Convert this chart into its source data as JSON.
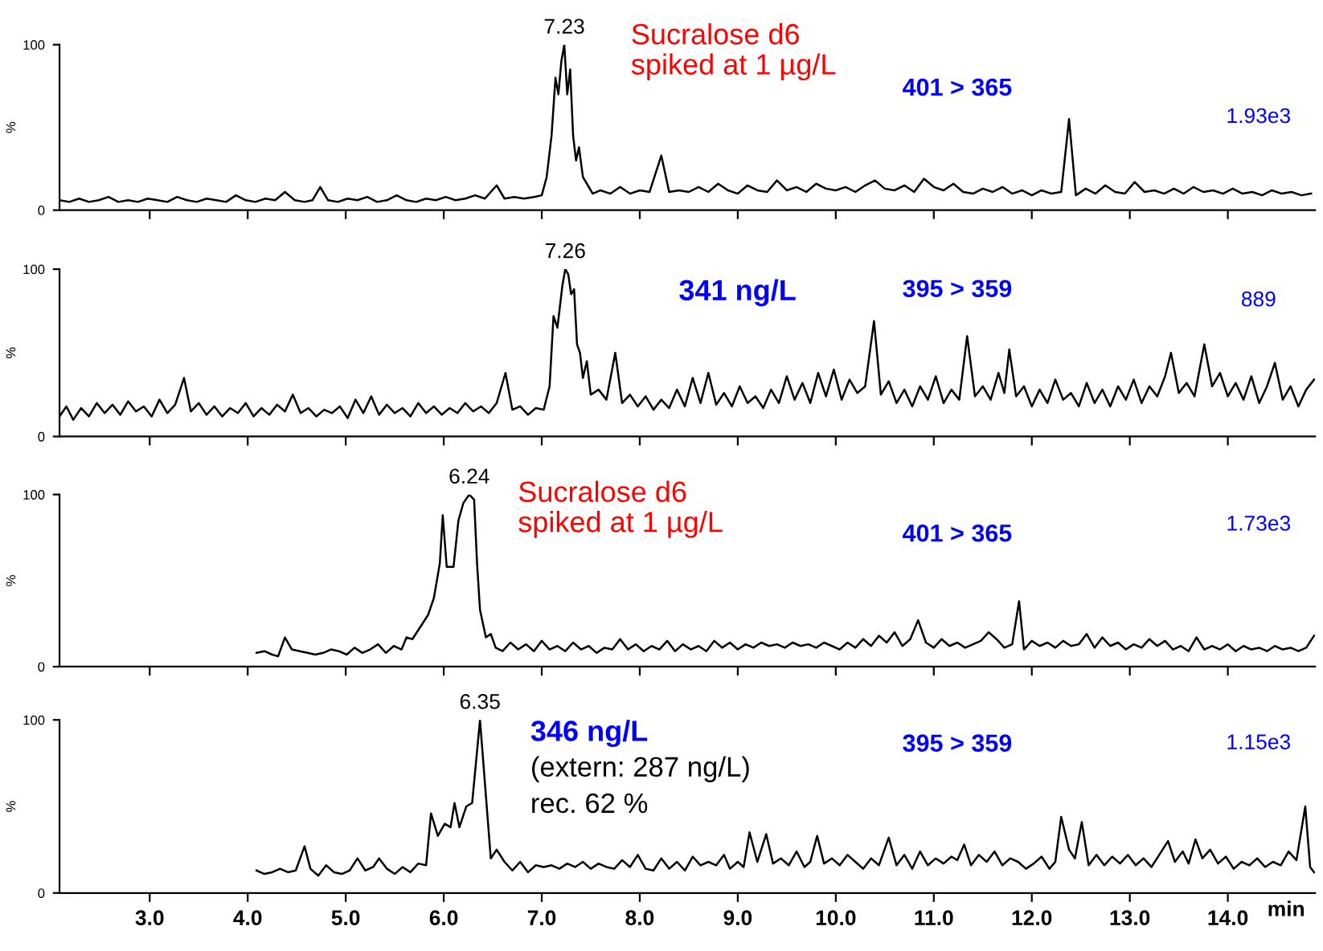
{
  "chart_data": [
    {
      "type": "line",
      "ylabel": "%",
      "xlim": [
        2.08,
        14.89
      ],
      "ylim": [
        0,
        100
      ],
      "yticks": [
        0,
        100
      ],
      "tick_labels": "y",
      "xticks": [
        3,
        4,
        5,
        6,
        7,
        8,
        9,
        10,
        11,
        12,
        13,
        14
      ],
      "annotations": [
        {
          "text": "7.23",
          "x": 7.23,
          "y": 100
        },
        "Sucralose d6\nspiked at 1 µg/L",
        "401 > 365",
        "1.93e3"
      ],
      "series": [
        {
          "color": "#000000",
          "x": [
            2.08,
            2.18,
            2.28,
            2.38,
            2.48,
            2.58,
            2.68,
            2.78,
            2.88,
            2.98,
            3.08,
            3.18,
            3.28,
            3.38,
            3.48,
            3.58,
            3.68,
            3.78,
            3.88,
            3.98,
            4.08,
            4.18,
            4.28,
            4.38,
            4.48,
            4.58,
            4.66,
            4.74,
            4.82,
            4.92,
            5.02,
            5.12,
            5.22,
            5.32,
            5.42,
            5.52,
            5.62,
            5.72,
            5.82,
            5.92,
            6.02,
            6.12,
            6.22,
            6.32,
            6.42,
            6.54,
            6.62,
            6.72,
            6.82,
            6.92,
            7.0,
            7.05,
            7.1,
            7.14,
            7.17,
            7.2,
            7.23,
            7.26,
            7.29,
            7.32,
            7.35,
            7.38,
            7.42,
            7.47,
            7.52,
            7.6,
            7.7,
            7.8,
            7.9,
            8.0,
            8.1,
            8.22,
            8.3,
            8.4,
            8.5,
            8.6,
            8.7,
            8.8,
            8.9,
            9.0,
            9.1,
            9.2,
            9.3,
            9.4,
            9.5,
            9.6,
            9.7,
            9.8,
            9.9,
            10.0,
            10.1,
            10.2,
            10.3,
            10.4,
            10.5,
            10.6,
            10.7,
            10.8,
            10.9,
            11.0,
            11.1,
            11.2,
            11.3,
            11.4,
            11.5,
            11.6,
            11.7,
            11.8,
            11.9,
            12.0,
            12.1,
            12.2,
            12.3,
            12.38,
            12.45,
            12.55,
            12.65,
            12.75,
            12.85,
            12.95,
            13.05,
            13.15,
            13.25,
            13.35,
            13.45,
            13.55,
            13.65,
            13.75,
            13.85,
            13.95,
            14.05,
            14.15,
            14.25,
            14.35,
            14.45,
            14.55,
            14.65,
            14.75,
            14.85
          ],
          "values": [
            6,
            5,
            7,
            5,
            6,
            8,
            5,
            6,
            5,
            7,
            6,
            5,
            8,
            6,
            5,
            7,
            6,
            5,
            9,
            6,
            5,
            7,
            6,
            11,
            6,
            5,
            6,
            14,
            6,
            5,
            7,
            6,
            8,
            5,
            6,
            9,
            6,
            5,
            7,
            6,
            8,
            6,
            7,
            9,
            7,
            15,
            7,
            8,
            7,
            8,
            9,
            20,
            45,
            80,
            70,
            90,
            100,
            70,
            85,
            45,
            30,
            38,
            20,
            15,
            10,
            12,
            10,
            14,
            10,
            12,
            11,
            33,
            11,
            12,
            11,
            14,
            11,
            16,
            12,
            10,
            15,
            12,
            11,
            18,
            12,
            14,
            11,
            16,
            13,
            12,
            14,
            11,
            15,
            18,
            13,
            12,
            15,
            11,
            19,
            14,
            12,
            16,
            11,
            10,
            13,
            11,
            14,
            10,
            12,
            9,
            12,
            10,
            11,
            55,
            9,
            13,
            10,
            15,
            11,
            10,
            17,
            11,
            12,
            10,
            13,
            10,
            14,
            11,
            12,
            10,
            13,
            10,
            11,
            9,
            12,
            10,
            11,
            9,
            10
          ]
        }
      ]
    },
    {
      "type": "line",
      "ylabel": "%",
      "xlim": [
        2.08,
        14.89
      ],
      "ylim": [
        0,
        100
      ],
      "yticks": [
        0,
        100
      ],
      "tick_labels": "y",
      "xticks": [
        3,
        4,
        5,
        6,
        7,
        8,
        9,
        10,
        11,
        12,
        13,
        14
      ],
      "annotations": [
        {
          "text": "7.26",
          "x": 7.24,
          "y": 100
        },
        "341 ng/L",
        "395 > 359",
        "889"
      ],
      "series": [
        {
          "color": "#000000",
          "x": [
            2.08,
            2.15,
            2.22,
            2.3,
            2.38,
            2.46,
            2.54,
            2.62,
            2.7,
            2.78,
            2.86,
            2.94,
            3.02,
            3.1,
            3.18,
            3.26,
            3.35,
            3.42,
            3.5,
            3.58,
            3.66,
            3.74,
            3.82,
            3.9,
            3.98,
            4.06,
            4.14,
            4.22,
            4.3,
            4.38,
            4.46,
            4.54,
            4.62,
            4.7,
            4.78,
            4.86,
            4.94,
            5.02,
            5.1,
            5.18,
            5.26,
            5.34,
            5.42,
            5.5,
            5.58,
            5.66,
            5.74,
            5.82,
            5.9,
            5.98,
            6.06,
            6.14,
            6.22,
            6.3,
            6.38,
            6.46,
            6.54,
            6.63,
            6.7,
            6.78,
            6.86,
            6.94,
            7.02,
            7.08,
            7.12,
            7.16,
            7.21,
            7.24,
            7.27,
            7.3,
            7.33,
            7.36,
            7.39,
            7.42,
            7.46,
            7.5,
            7.58,
            7.66,
            7.75,
            7.82,
            7.9,
            7.98,
            8.06,
            8.14,
            8.22,
            8.3,
            8.38,
            8.46,
            8.54,
            8.62,
            8.7,
            8.78,
            8.86,
            8.94,
            9.02,
            9.1,
            9.18,
            9.26,
            9.34,
            9.42,
            9.5,
            9.58,
            9.66,
            9.74,
            9.82,
            9.9,
            9.98,
            10.06,
            10.14,
            10.22,
            10.3,
            10.39,
            10.46,
            10.54,
            10.62,
            10.7,
            10.78,
            10.86,
            10.94,
            11.02,
            11.1,
            11.18,
            11.26,
            11.34,
            11.42,
            11.5,
            11.58,
            11.66,
            11.72,
            11.77,
            11.84,
            11.92,
            12.0,
            12.08,
            12.16,
            12.24,
            12.32,
            12.4,
            12.48,
            12.56,
            12.64,
            12.72,
            12.8,
            12.88,
            12.96,
            13.04,
            13.12,
            13.2,
            13.28,
            13.36,
            13.42,
            13.5,
            13.58,
            13.66,
            13.76,
            13.84,
            13.92,
            14.0,
            14.08,
            14.16,
            14.24,
            14.32,
            14.4,
            14.48,
            14.56,
            14.64,
            14.72,
            14.8,
            14.88
          ],
          "values": [
            12,
            18,
            10,
            17,
            12,
            20,
            14,
            19,
            13,
            21,
            15,
            18,
            12,
            22,
            14,
            19,
            35,
            15,
            20,
            13,
            18,
            12,
            17,
            14,
            20,
            12,
            17,
            13,
            19,
            15,
            25,
            14,
            17,
            12,
            16,
            14,
            18,
            11,
            22,
            14,
            24,
            13,
            19,
            14,
            17,
            12,
            20,
            14,
            18,
            13,
            17,
            14,
            20,
            15,
            18,
            14,
            20,
            38,
            16,
            18,
            13,
            17,
            16,
            30,
            72,
            65,
            90,
            100,
            97,
            85,
            88,
            55,
            50,
            35,
            45,
            25,
            28,
            22,
            50,
            20,
            25,
            18,
            24,
            16,
            22,
            17,
            28,
            18,
            35,
            20,
            38,
            19,
            26,
            18,
            30,
            20,
            24,
            17,
            28,
            20,
            36,
            22,
            32,
            20,
            38,
            24,
            40,
            22,
            34,
            26,
            30,
            69,
            25,
            33,
            20,
            28,
            18,
            30,
            22,
            36,
            20,
            28,
            22,
            60,
            24,
            30,
            22,
            38,
            26,
            52,
            24,
            30,
            18,
            28,
            20,
            34,
            22,
            26,
            18,
            32,
            20,
            28,
            18,
            30,
            22,
            34,
            20,
            30,
            24,
            36,
            50,
            26,
            32,
            24,
            55,
            30,
            38,
            24,
            32,
            22,
            36,
            20,
            30,
            44,
            22,
            30,
            18,
            28,
            34
          ]
        }
      ]
    },
    {
      "type": "line",
      "ylabel": "%",
      "xlim": [
        2.08,
        14.89
      ],
      "ylim": [
        0,
        100
      ],
      "yticks": [
        0,
        100
      ],
      "tick_labels": "y",
      "xticks": [
        3,
        4,
        5,
        6,
        7,
        8,
        9,
        10,
        11,
        12,
        13,
        14
      ],
      "annotations": [
        {
          "text": "6.24",
          "x": 6.26,
          "y": 100
        },
        "Sucralose d6\nspiked at 1 µg/L",
        "401 > 365",
        "1.73e3"
      ],
      "series": [
        {
          "color": "#000000",
          "x": [
            4.09,
            4.17,
            4.25,
            4.31,
            4.38,
            4.45,
            4.53,
            4.61,
            4.69,
            4.77,
            4.85,
            4.93,
            5.01,
            5.09,
            5.17,
            5.25,
            5.33,
            5.41,
            5.49,
            5.57,
            5.62,
            5.68,
            5.76,
            5.84,
            5.9,
            5.96,
            5.99,
            6.03,
            6.1,
            6.15,
            6.2,
            6.26,
            6.31,
            6.34,
            6.37,
            6.43,
            6.48,
            6.53,
            6.6,
            6.68,
            6.76,
            6.84,
            6.92,
            7.0,
            7.08,
            7.16,
            7.24,
            7.32,
            7.4,
            7.48,
            7.56,
            7.64,
            7.72,
            7.8,
            7.88,
            7.96,
            8.04,
            8.12,
            8.2,
            8.28,
            8.36,
            8.44,
            8.52,
            8.6,
            8.68,
            8.76,
            8.84,
            8.92,
            9.0,
            9.08,
            9.16,
            9.24,
            9.32,
            9.4,
            9.48,
            9.56,
            9.64,
            9.72,
            9.8,
            9.88,
            9.96,
            10.04,
            10.12,
            10.2,
            10.28,
            10.36,
            10.44,
            10.52,
            10.6,
            10.68,
            10.76,
            10.84,
            10.92,
            11.0,
            11.08,
            11.16,
            11.24,
            11.32,
            11.4,
            11.48,
            11.56,
            11.64,
            11.72,
            11.8,
            11.87,
            11.92,
            12.0,
            12.08,
            12.16,
            12.24,
            12.32,
            12.4,
            12.48,
            12.56,
            12.64,
            12.72,
            12.8,
            12.88,
            12.96,
            13.04,
            13.12,
            13.2,
            13.28,
            13.36,
            13.44,
            13.52,
            13.6,
            13.68,
            13.76,
            13.84,
            13.92,
            14.0,
            14.08,
            14.16,
            14.24,
            14.32,
            14.4,
            14.48,
            14.56,
            14.64,
            14.72,
            14.8,
            14.88
          ],
          "values": [
            8,
            9,
            7,
            6,
            17,
            10,
            9,
            8,
            7,
            8,
            10,
            9,
            7,
            11,
            8,
            10,
            13,
            8,
            12,
            10,
            17,
            16,
            23,
            30,
            40,
            60,
            88,
            58,
            58,
            85,
            95,
            100,
            97,
            60,
            33,
            17,
            19,
            11,
            9,
            14,
            10,
            13,
            9,
            15,
            10,
            12,
            9,
            14,
            10,
            12,
            8,
            11,
            10,
            16,
            10,
            13,
            9,
            12,
            10,
            15,
            9,
            13,
            10,
            12,
            9,
            15,
            11,
            14,
            10,
            13,
            11,
            14,
            12,
            13,
            11,
            14,
            12,
            13,
            11,
            14,
            12,
            10,
            14,
            11,
            16,
            12,
            18,
            14,
            20,
            12,
            16,
            27,
            14,
            11,
            16,
            12,
            14,
            11,
            13,
            15,
            20,
            16,
            11,
            13,
            38,
            10,
            15,
            12,
            14,
            11,
            15,
            12,
            13,
            19,
            11,
            17,
            12,
            14,
            10,
            13,
            11,
            16,
            12,
            15,
            10,
            12,
            9,
            17,
            10,
            12,
            10,
            13,
            9,
            12,
            10,
            11,
            9,
            12,
            10,
            11,
            9,
            11,
            18
          ]
        }
      ]
    },
    {
      "type": "line",
      "ylabel": "%",
      "xlabel": "min",
      "xlim": [
        2.08,
        14.89
      ],
      "ylim": [
        0,
        100
      ],
      "yticks": [
        0,
        100
      ],
      "xticks": [
        {
          "value": 3,
          "label": "3.0"
        },
        {
          "value": 4,
          "label": "4.0"
        },
        {
          "value": 5,
          "label": "5.0"
        },
        {
          "value": 6,
          "label": "6.0"
        },
        {
          "value": 7,
          "label": "7.0"
        },
        {
          "value": 8,
          "label": "8.0"
        },
        {
          "value": 9,
          "label": "9.0"
        },
        {
          "value": 10,
          "label": "10.0"
        },
        {
          "value": 11,
          "label": "11.0"
        },
        {
          "value": 12,
          "label": "12.0"
        },
        {
          "value": 13,
          "label": "13.0"
        },
        {
          "value": 14,
          "label": "14.0"
        }
      ],
      "annotations": [
        {
          "text": "6.35",
          "x": 6.37,
          "y": 100
        },
        "346 ng/L",
        "(extern: 287 ng/L)",
        "rec. 62 %",
        "395 > 359",
        "1.15e3"
      ],
      "series": [
        {
          "color": "#000000",
          "x": [
            4.09,
            4.17,
            4.25,
            4.33,
            4.41,
            4.49,
            4.58,
            4.64,
            4.72,
            4.8,
            4.88,
            4.96,
            5.04,
            5.12,
            5.2,
            5.28,
            5.34,
            5.42,
            5.5,
            5.58,
            5.66,
            5.74,
            5.82,
            5.87,
            5.94,
            6.01,
            6.07,
            6.11,
            6.16,
            6.23,
            6.29,
            6.37,
            6.48,
            6.54,
            6.62,
            6.7,
            6.78,
            6.86,
            6.94,
            7.02,
            7.1,
            7.18,
            7.26,
            7.34,
            7.42,
            7.5,
            7.58,
            7.66,
            7.74,
            7.82,
            7.9,
            7.98,
            8.06,
            8.14,
            8.22,
            8.3,
            8.38,
            8.46,
            8.54,
            8.62,
            8.7,
            8.78,
            8.86,
            8.92,
            9.0,
            9.06,
            9.12,
            9.2,
            9.29,
            9.36,
            9.44,
            9.52,
            9.6,
            9.68,
            9.74,
            9.81,
            9.88,
            9.96,
            10.04,
            10.12,
            10.2,
            10.28,
            10.36,
            10.44,
            10.54,
            10.62,
            10.7,
            10.78,
            10.86,
            10.94,
            11.02,
            11.1,
            11.18,
            11.24,
            11.31,
            11.38,
            11.46,
            11.54,
            11.62,
            11.7,
            11.78,
            11.86,
            11.94,
            12.02,
            12.1,
            12.18,
            12.24,
            12.3,
            12.38,
            12.44,
            12.51,
            12.58,
            12.66,
            12.74,
            12.82,
            12.9,
            12.98,
            13.06,
            13.14,
            13.22,
            13.3,
            13.39,
            13.46,
            13.54,
            13.6,
            13.67,
            13.74,
            13.82,
            13.9,
            13.98,
            14.06,
            14.14,
            14.22,
            14.3,
            14.38,
            14.46,
            14.54,
            14.62,
            14.7,
            14.79,
            14.84,
            14.88
          ],
          "values": [
            13,
            11,
            12,
            14,
            12,
            13,
            27,
            14,
            10,
            16,
            12,
            11,
            13,
            20,
            13,
            15,
            20,
            14,
            11,
            15,
            12,
            17,
            16,
            46,
            33,
            40,
            38,
            52,
            38,
            50,
            52,
            100,
            20,
            25,
            18,
            13,
            18,
            12,
            16,
            15,
            16,
            14,
            17,
            15,
            18,
            14,
            17,
            15,
            14,
            19,
            15,
            22,
            14,
            13,
            20,
            14,
            18,
            13,
            21,
            16,
            18,
            16,
            22,
            14,
            18,
            15,
            35,
            18,
            34,
            17,
            20,
            16,
            24,
            15,
            18,
            33,
            17,
            20,
            16,
            22,
            18,
            14,
            20,
            16,
            32,
            16,
            22,
            14,
            24,
            16,
            20,
            17,
            21,
            19,
            28,
            16,
            22,
            18,
            24,
            16,
            20,
            18,
            14,
            17,
            21,
            14,
            18,
            44,
            25,
            20,
            41,
            16,
            22,
            16,
            21,
            17,
            22,
            16,
            20,
            15,
            22,
            30,
            18,
            24,
            17,
            31,
            20,
            25,
            17,
            21,
            14,
            18,
            16,
            20,
            15,
            18,
            16,
            24,
            19,
            50,
            15,
            12
          ]
        }
      ]
    }
  ]
}
